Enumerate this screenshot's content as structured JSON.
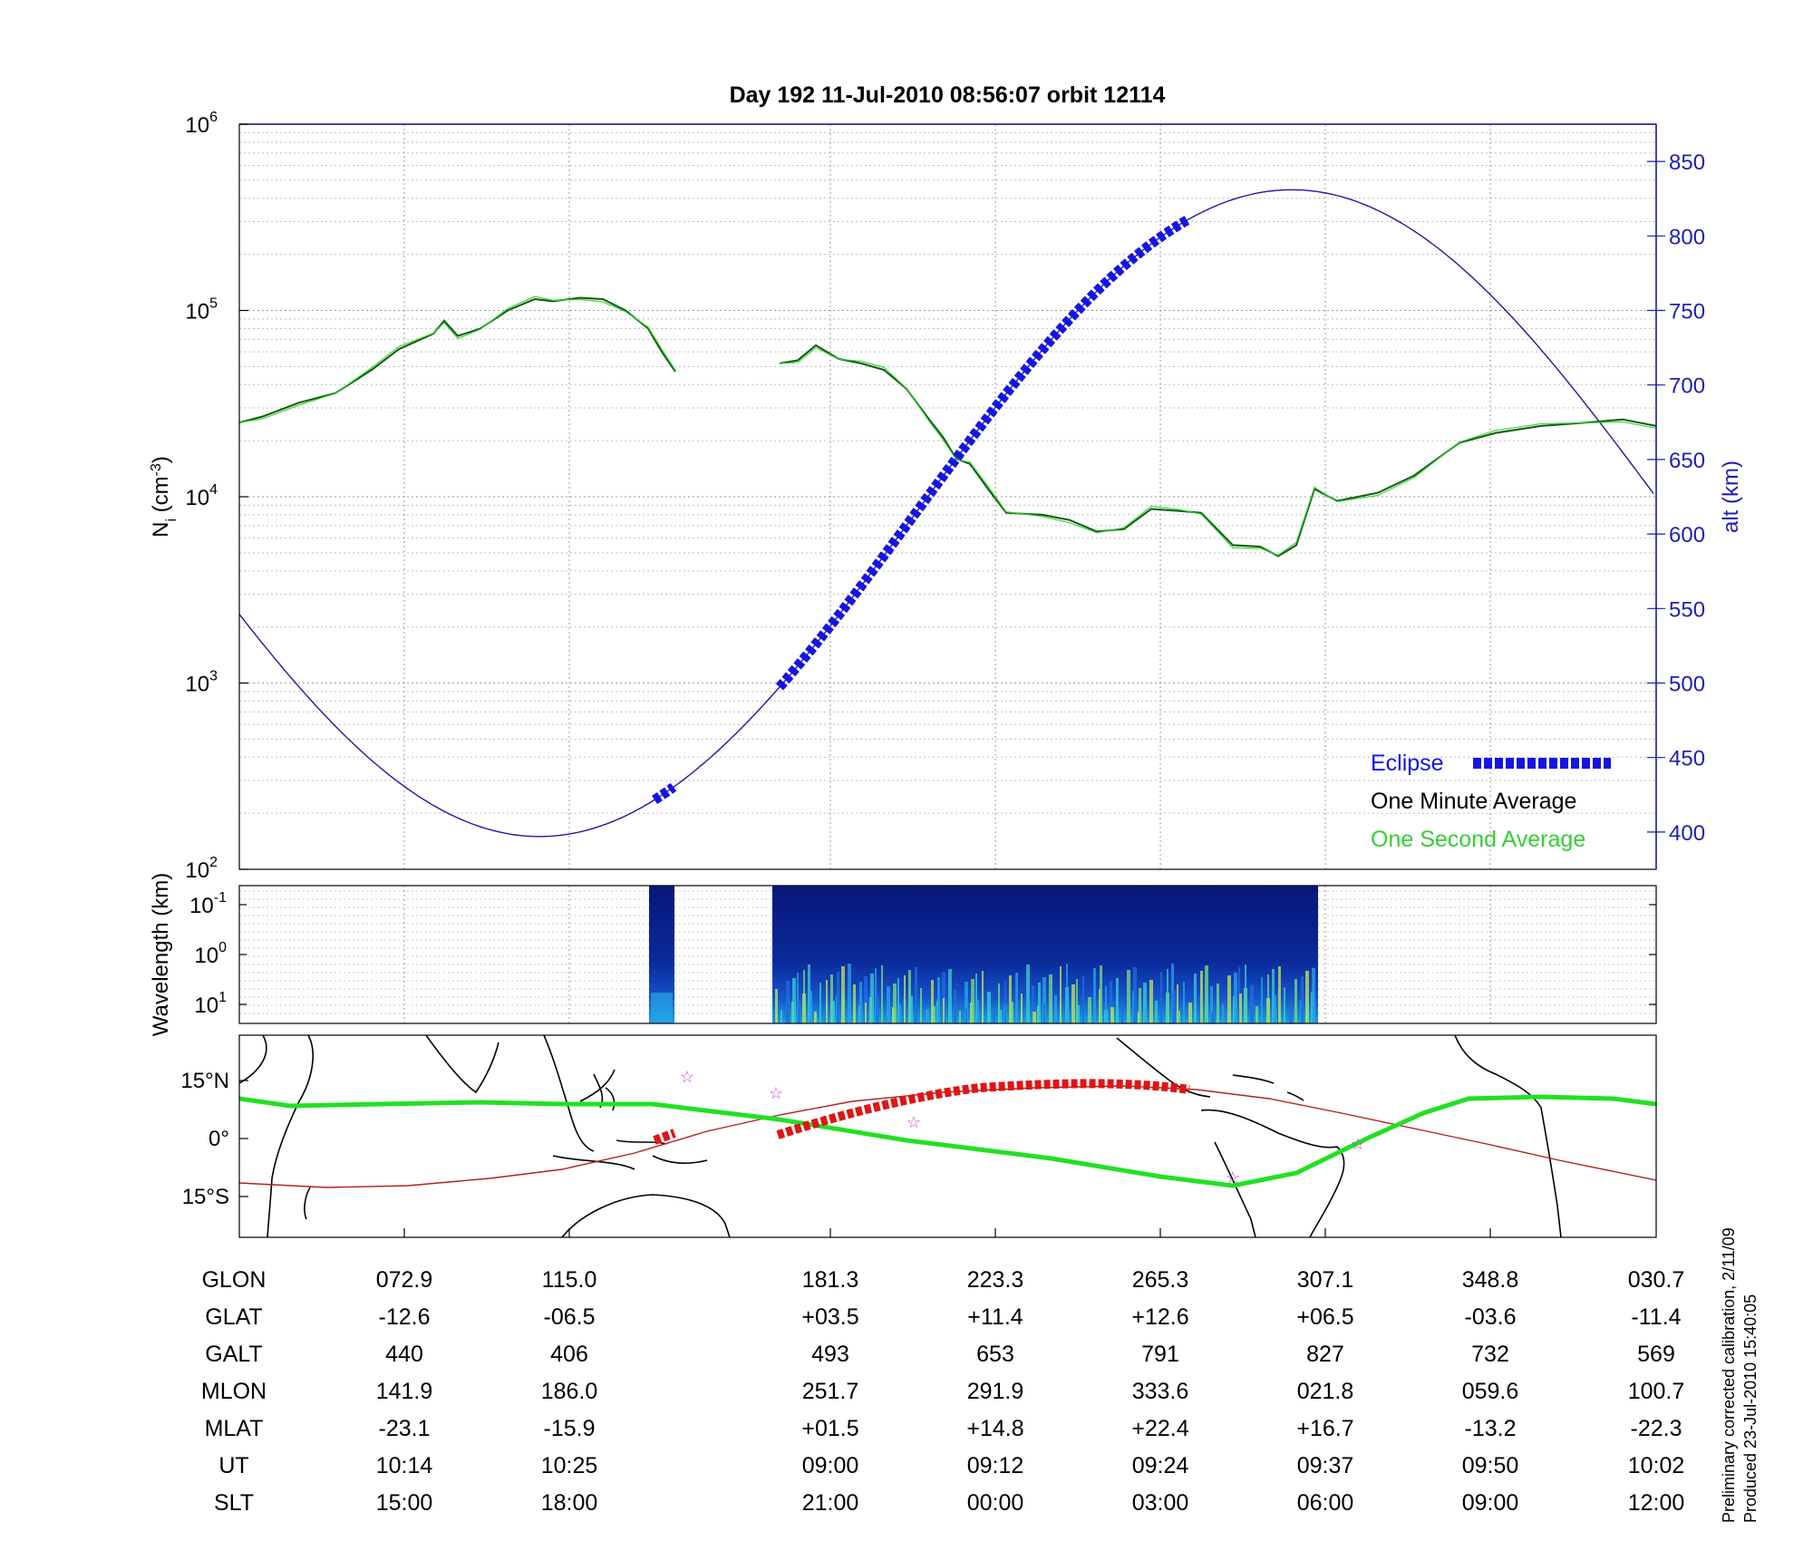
{
  "title": "Day 192  11-Jul-2010 08:56:07   orbit 12114",
  "colors": {
    "altitude": "#1a1aa6",
    "one_minute": "#0b5a0b",
    "one_second": "#34d134",
    "eclipse": "#1414e6",
    "track_eclipse": "#e01414",
    "ground_track": "#22e022",
    "magnetic_equator": "#b42020",
    "stars": "#cc44cc",
    "spectrogram_bg": "#07167a"
  },
  "panels": {
    "density": {
      "ylabel_left": "N_i (cm^-3)",
      "ylabel_right": "alt (km)",
      "left_ticks": [
        {
          "base": "10",
          "exp": "2",
          "value": 100
        },
        {
          "base": "10",
          "exp": "3",
          "value": 1000
        },
        {
          "base": "10",
          "exp": "4",
          "value": 10000
        },
        {
          "base": "10",
          "exp": "5",
          "value": 100000
        },
        {
          "base": "10",
          "exp": "6",
          "value": 1000000
        }
      ],
      "right_ticks": [
        "400",
        "450",
        "500",
        "550",
        "600",
        "650",
        "700",
        "750",
        "800",
        "850"
      ],
      "legend": {
        "eclipse": "Eclipse",
        "one_minute": "One Minute Average",
        "one_second": "One Second Average"
      }
    },
    "spectrogram": {
      "ylabel": "Wavelength (km)",
      "ticks": [
        {
          "base": "10",
          "exp": "-1"
        },
        {
          "base": "10",
          "exp": "0"
        },
        {
          "base": "10",
          "exp": "1"
        }
      ]
    },
    "map": {
      "lat_ticks": [
        "15°N",
        "0°",
        "15°S"
      ]
    }
  },
  "chart_data": {
    "type": "line",
    "ylim_density": [
      100,
      1000000
    ],
    "ylim_alt_km": [
      375,
      875
    ],
    "y_scale_density": "log",
    "grid": true,
    "legend_position": "bottom-right",
    "x_ticks_ut": [
      "10:14",
      "10:25",
      "09:00",
      "09:12",
      "09:24",
      "09:37",
      "09:50",
      "10:02"
    ],
    "series": [
      {
        "name": "One Minute Average",
        "data_gaps": "gaps near the start of the eclipse segment",
        "values_by_slt": [
          {
            "slt": "15:00",
            "ni": 28000
          },
          {
            "slt": "18:00",
            "ni": 115000
          },
          {
            "slt": "21:00",
            "ni": 60000
          },
          {
            "slt": "00:00",
            "ni": 9000
          },
          {
            "slt": "03:00",
            "ni": 8500
          },
          {
            "slt": "06:00",
            "ni": 12000
          },
          {
            "slt": "09:00",
            "ni": 24000
          },
          {
            "slt": "12:00",
            "ni": 25000
          }
        ]
      },
      {
        "name": "One Second Average",
        "values_by_slt": [
          {
            "slt": "15:00",
            "ni": 28000
          },
          {
            "slt": "18:00",
            "ni": 115000
          },
          {
            "slt": "21:00",
            "ni": 60000
          },
          {
            "slt": "00:00",
            "ni": 9000
          },
          {
            "slt": "03:00",
            "ni": 8500
          },
          {
            "slt": "06:00",
            "ni": 12000
          },
          {
            "slt": "09:00",
            "ni": 24000
          },
          {
            "slt": "12:00",
            "ni": 25000
          }
        ]
      },
      {
        "name": "alt (km)",
        "values_by_slt": [
          {
            "slt": "15:00",
            "alt": 440
          },
          {
            "slt": "18:00",
            "alt": 406
          },
          {
            "slt": "21:00",
            "alt": 493
          },
          {
            "slt": "00:00",
            "alt": 653
          },
          {
            "slt": "03:00",
            "alt": 791
          },
          {
            "slt": "06:00",
            "alt": 827
          },
          {
            "slt": "09:00",
            "alt": 732
          },
          {
            "slt": "12:00",
            "alt": 569
          }
        ]
      }
    ]
  },
  "table": {
    "rows": [
      {
        "label": "GLON",
        "values": [
          "072.9",
          "115.0",
          "181.3",
          "223.3",
          "265.3",
          "307.1",
          "348.8",
          "030.7"
        ]
      },
      {
        "label": "GLAT",
        "values": [
          "-12.6",
          "-06.5",
          "+03.5",
          "+11.4",
          "+12.6",
          "+06.5",
          "-03.6",
          "-11.4"
        ]
      },
      {
        "label": "GALT",
        "values": [
          "440",
          "406",
          "493",
          "653",
          "791",
          "827",
          "732",
          "569"
        ]
      },
      {
        "label": "MLON",
        "values": [
          "141.9",
          "186.0",
          "251.7",
          "291.9",
          "333.6",
          "021.8",
          "059.6",
          "100.7"
        ]
      },
      {
        "label": "MLAT",
        "values": [
          "-23.1",
          "-15.9",
          "+01.5",
          "+14.8",
          "+22.4",
          "+16.7",
          "-13.2",
          "-22.3"
        ]
      },
      {
        "label": "UT",
        "values": [
          "10:14",
          "10:25",
          "09:00",
          "09:12",
          "09:24",
          "09:37",
          "09:50",
          "10:02"
        ]
      },
      {
        "label": "SLT",
        "values": [
          "15:00",
          "18:00",
          "21:00",
          "00:00",
          "03:00",
          "06:00",
          "09:00",
          "12:00"
        ]
      }
    ]
  },
  "footer": {
    "line1": "Preliminary corrected calibration, 2/11/09",
    "line2": "Produced 23-Jul-2010 15:40:05"
  }
}
